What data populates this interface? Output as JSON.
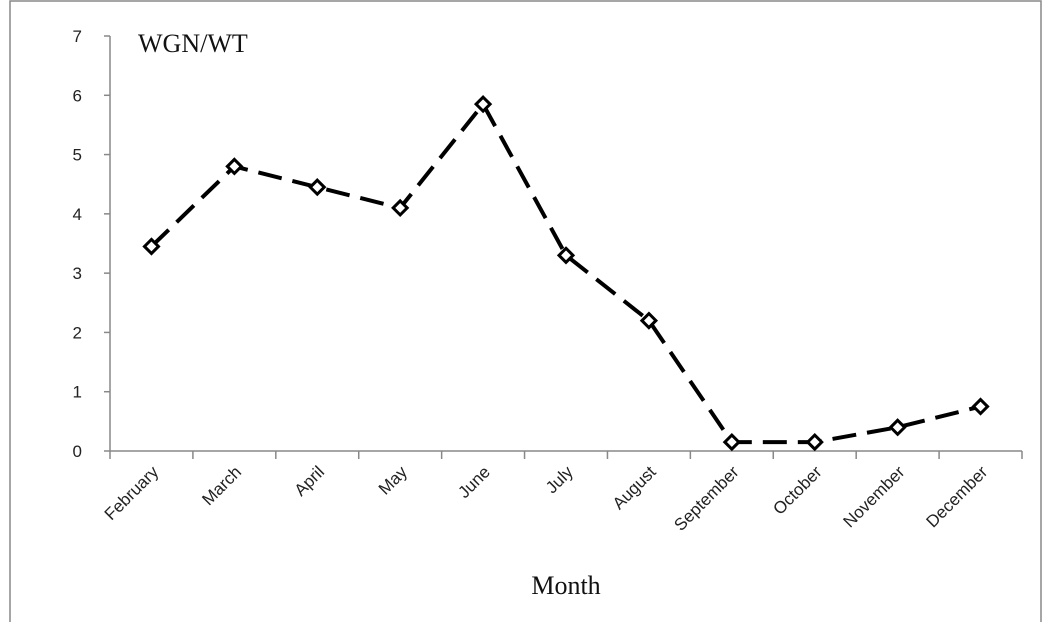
{
  "chart_data": {
    "type": "line",
    "title": "WGN/WT",
    "x_label": "Month",
    "categories": [
      "February",
      "March",
      "April",
      "May",
      "June",
      "July",
      "August",
      "September",
      "October",
      "November",
      "December"
    ],
    "series": [
      {
        "color": "#000000",
        "values": [
          3.45,
          4.8,
          4.45,
          4.1,
          5.85,
          3.3,
          2.2,
          0.15,
          0.15,
          0.4,
          0.75
        ]
      }
    ],
    "ylim": [
      0,
      7
    ],
    "yticks": [
      0,
      1,
      2,
      3,
      4,
      5,
      6,
      7
    ],
    "grid": false
  }
}
